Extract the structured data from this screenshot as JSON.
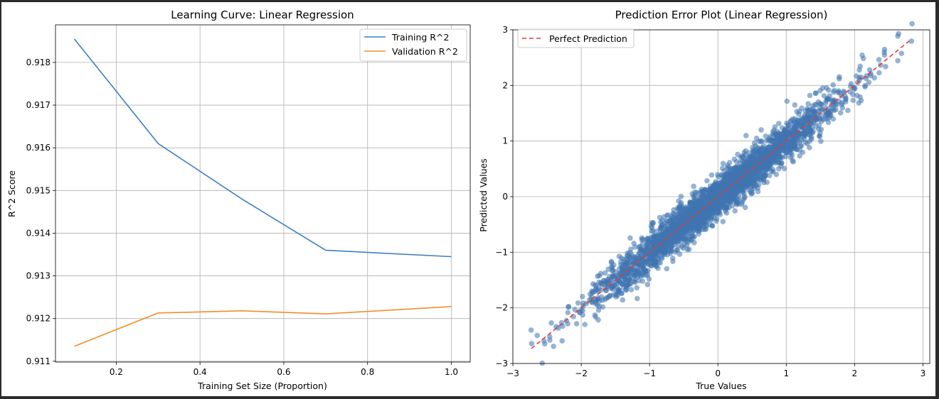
{
  "chart_data": [
    {
      "type": "line",
      "title": "Learning Curve: Linear Regression",
      "xlabel": "Training Set Size (Proportion)",
      "ylabel": "R^2 Score",
      "x": [
        0.1,
        0.3,
        0.5,
        0.7,
        1.0
      ],
      "xlim": [
        0.055,
        1.045
      ],
      "ylim": [
        0.91098,
        0.91888
      ],
      "xticks": [
        0.2,
        0.4,
        0.6,
        0.8,
        1.0
      ],
      "xticklabels": [
        "0.2",
        "0.4",
        "0.6",
        "0.8",
        "1.0"
      ],
      "yticks": [
        0.911,
        0.912,
        0.913,
        0.914,
        0.915,
        0.916,
        0.917,
        0.918
      ],
      "yticklabels": [
        "0.911",
        "0.912",
        "0.913",
        "0.914",
        "0.915",
        "0.916",
        "0.917",
        "0.918"
      ],
      "grid": true,
      "legend_position": "top-right",
      "series": [
        {
          "name": "Training R^2",
          "color": "#3f7fbf",
          "values": [
            0.91855,
            0.9161,
            0.9148,
            0.9136,
            0.91345
          ]
        },
        {
          "name": "Validation R^2",
          "color": "#f28e2b",
          "values": [
            0.91135,
            0.91213,
            0.91218,
            0.91211,
            0.91228
          ]
        }
      ]
    },
    {
      "type": "scatter",
      "title": "Prediction Error Plot (Linear Regression)",
      "xlabel": "True Values",
      "ylabel": "Predicted Values",
      "xlim": [
        -3.0,
        3.1
      ],
      "ylim": [
        -3.0,
        3.0
      ],
      "xticks": [
        -3,
        -2,
        -1,
        0,
        1,
        2,
        3
      ],
      "xticklabels": [
        "−3",
        "−2",
        "−1",
        "0",
        "1",
        "2",
        "3"
      ],
      "yticks": [
        -3,
        -2,
        -1,
        0,
        1,
        2,
        3
      ],
      "yticklabels": [
        "−3",
        "−2",
        "−1",
        "0",
        "1",
        "2",
        "3"
      ],
      "grid": true,
      "legend_position": "top-left",
      "point_color": "#3f74b0",
      "approx_points": {
        "count": 3000,
        "x_range": [
          -2.75,
          2.85
        ],
        "slope": 1.0,
        "noise_sd": 0.18
      },
      "reference_line": {
        "name": "Perfect Prediction",
        "color": "#e23b3b",
        "style": "dashed",
        "x": [
          -2.73,
          2.82
        ],
        "y": [
          -2.73,
          2.82
        ]
      }
    }
  ]
}
